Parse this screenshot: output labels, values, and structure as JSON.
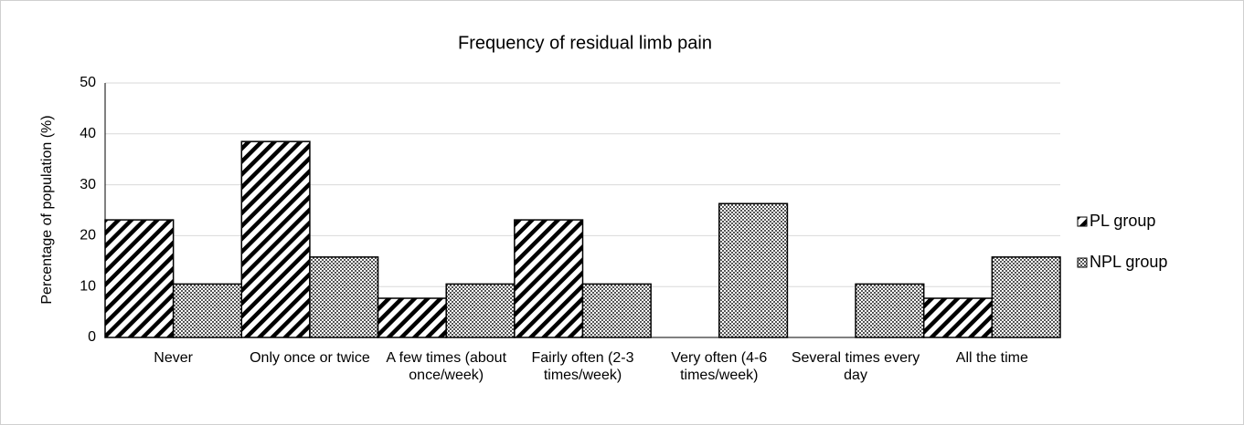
{
  "chart_data": {
    "type": "bar",
    "title": "Frequency of residual limb pain",
    "y_label": "Percentage of population (%)",
    "categories": [
      "Never",
      "Only once or twice",
      "A few times (about once/week)",
      "Fairly often (2-3 times/week)",
      "Very often (4-6 times/week)",
      "Several times every day",
      "All the time"
    ],
    "series": [
      {
        "name": "PL group",
        "color": "#000000",
        "hatch": "diagonal-stripes",
        "values": [
          23.1,
          38.5,
          7.7,
          23.1,
          0,
          0,
          7.7
        ]
      },
      {
        "name": "NPL group",
        "color": "#000000",
        "hatch": "checker",
        "values": [
          10.5,
          15.8,
          10.5,
          10.5,
          26.3,
          10.5,
          15.8
        ]
      }
    ],
    "ylim": [
      0,
      50
    ],
    "yticks": [
      0,
      10,
      20,
      30,
      40,
      50
    ],
    "grid": true,
    "legend": "right"
  }
}
